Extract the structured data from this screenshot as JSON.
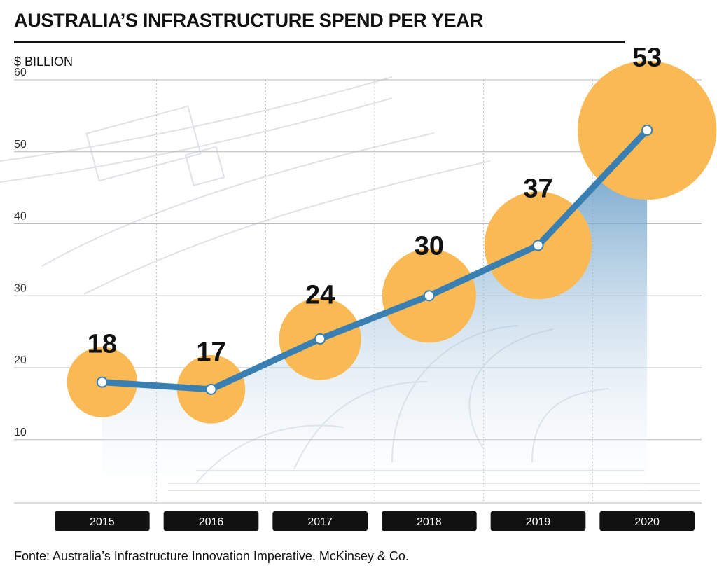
{
  "chart_data": {
    "type": "line",
    "title": "AUSTRALIA’S INFRASTRUCTURE SPEND PER YEAR",
    "unit_label": "$ BILLION",
    "categories": [
      "2015",
      "2016",
      "2017",
      "2018",
      "2019",
      "2020"
    ],
    "values": [
      18,
      17,
      24,
      30,
      37,
      53
    ],
    "data_labels": [
      "18",
      "17",
      "24",
      "30",
      "37",
      "53"
    ],
    "yticks": [
      10,
      20,
      30,
      40,
      50,
      60
    ],
    "ylim": [
      2,
      60
    ],
    "grid": true,
    "source": "Fonte: Australia’s Infrastructure Innovation Imperative, McKinsey & Co.",
    "colors": {
      "line": "#3a7fb2",
      "bubble": "#f9b955",
      "area_top": "#4a8bbd",
      "area_bottom": "#ffffff",
      "marker_fill": "#ffffff",
      "year_box": "#111111",
      "gridline": "#b8b8b8"
    }
  }
}
